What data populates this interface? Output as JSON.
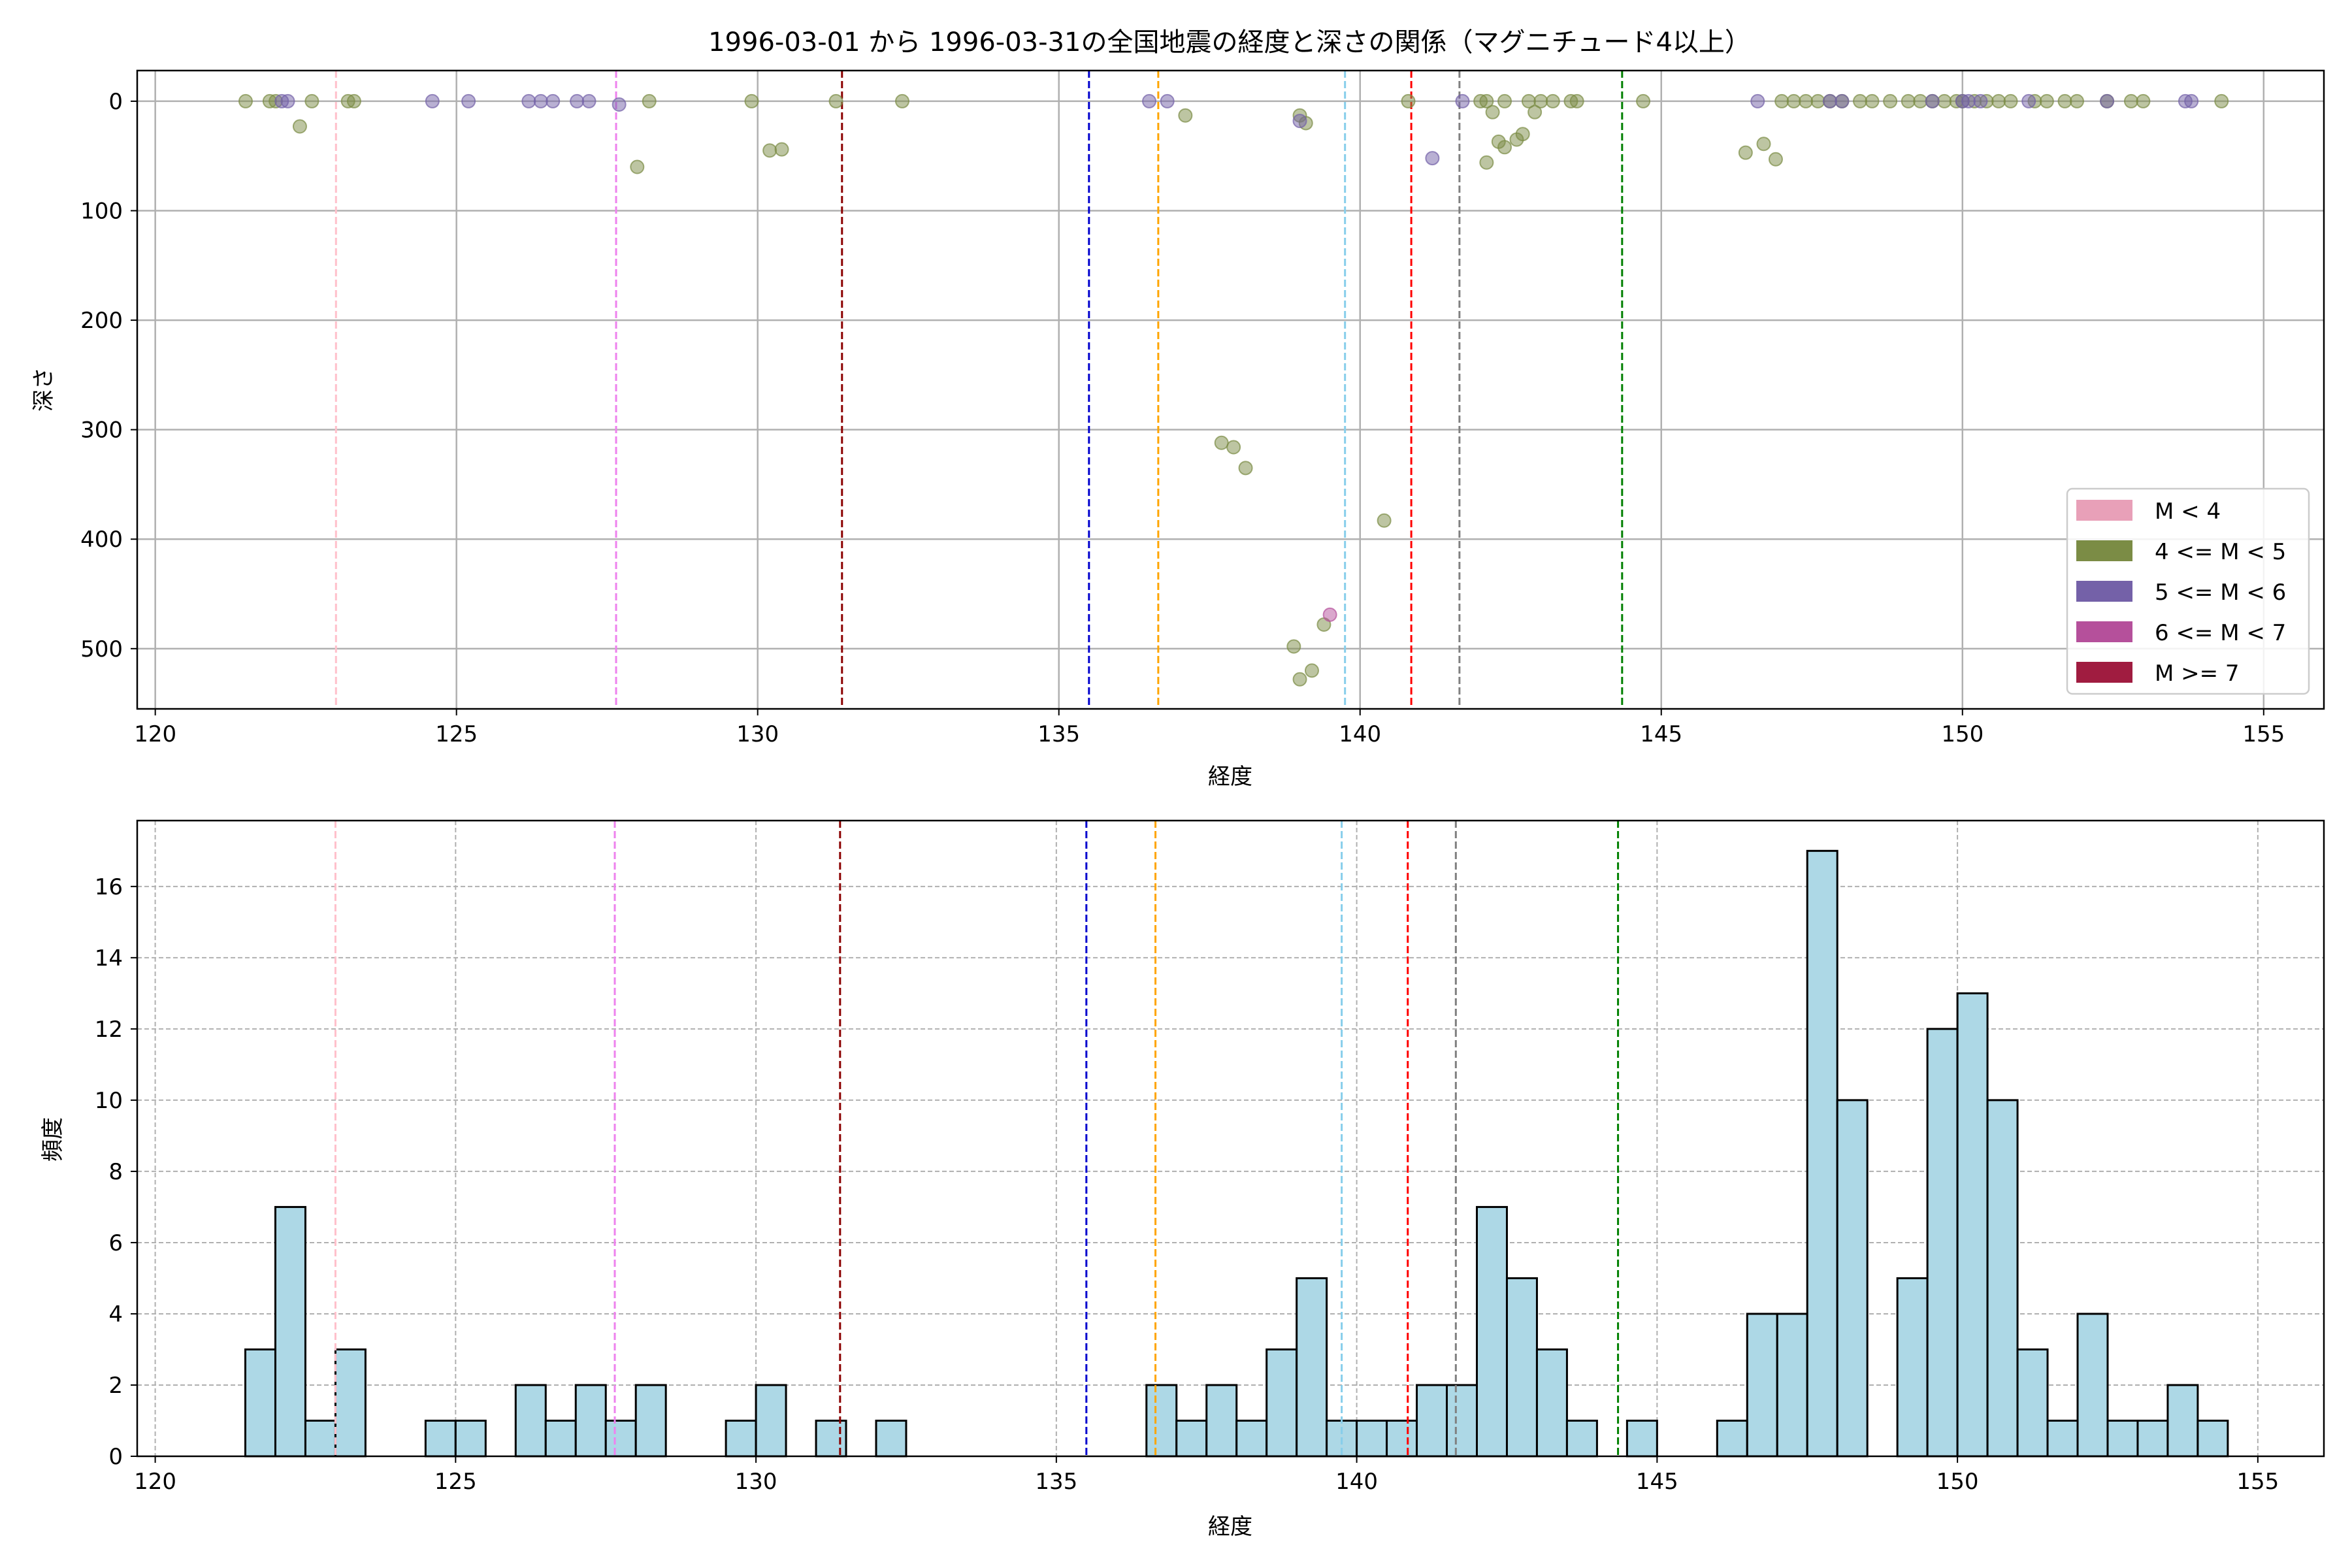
{
  "chart_data": [
    {
      "type": "scatter",
      "title": "1996-03-01 から 1996-03-31の全国地震の経度と深さの関係（マグニチュード4以上）",
      "xlabel": "経度",
      "ylabel": "深さ",
      "xlim": [
        119.7,
        156.0
      ],
      "ylim": [
        555,
        -28
      ],
      "y_inverted": true,
      "xticks": [
        120,
        125,
        130,
        135,
        140,
        145,
        150,
        155
      ],
      "yticks": [
        0,
        100,
        200,
        300,
        400,
        500
      ],
      "grid": true,
      "legend_position": "bottom-right",
      "legend": [
        {
          "label": "M < 4",
          "color": "#e8a0b8"
        },
        {
          "label": "4 <= M < 5",
          "color": "#7b8c45"
        },
        {
          "label": "5 <= M < 6",
          "color": "#7461a8"
        },
        {
          "label": "6 <= M < 7",
          "color": "#b5509b"
        },
        {
          "label": "M >= 7",
          "color": "#a01c40"
        }
      ],
      "reference_lines": [
        {
          "x": 123.0,
          "color": "#ffc0cb"
        },
        {
          "x": 127.65,
          "color": "#ee82ee"
        },
        {
          "x": 131.4,
          "color": "#8b0000"
        },
        {
          "x": 135.5,
          "color": "#0000cd"
        },
        {
          "x": 136.65,
          "color": "#ffa500"
        },
        {
          "x": 139.75,
          "color": "#87ceeb"
        },
        {
          "x": 140.85,
          "color": "#ff0000"
        },
        {
          "x": 141.65,
          "color": "#808080"
        },
        {
          "x": 144.35,
          "color": "#008000"
        }
      ],
      "series": [
        {
          "name": "4 <= M < 5",
          "color": "#7b8c45",
          "points": [
            [
              121.5,
              0
            ],
            [
              121.9,
              0
            ],
            [
              122.0,
              0
            ],
            [
              122.4,
              23
            ],
            [
              122.6,
              0
            ],
            [
              123.2,
              0
            ],
            [
              123.3,
              0
            ],
            [
              128.0,
              60
            ],
            [
              128.2,
              0
            ],
            [
              129.9,
              0
            ],
            [
              130.2,
              45
            ],
            [
              130.4,
              44
            ],
            [
              131.3,
              0
            ],
            [
              132.4,
              0
            ],
            [
              137.1,
              13
            ],
            [
              137.7,
              312
            ],
            [
              137.9,
              316
            ],
            [
              138.1,
              335
            ],
            [
              138.9,
              498
            ],
            [
              139.0,
              528
            ],
            [
              139.0,
              13
            ],
            [
              139.1,
              20
            ],
            [
              139.2,
              520
            ],
            [
              139.4,
              478
            ],
            [
              140.4,
              383
            ],
            [
              140.8,
              0
            ],
            [
              142.0,
              0
            ],
            [
              142.1,
              0
            ],
            [
              142.2,
              10
            ],
            [
              142.3,
              37
            ],
            [
              142.4,
              42
            ],
            [
              142.4,
              0
            ],
            [
              142.1,
              56
            ],
            [
              142.6,
              35
            ],
            [
              142.7,
              30
            ],
            [
              142.8,
              0
            ],
            [
              142.9,
              10
            ],
            [
              143.0,
              0
            ],
            [
              143.2,
              0
            ],
            [
              143.5,
              0
            ],
            [
              143.6,
              0
            ],
            [
              144.7,
              0
            ],
            [
              146.4,
              47
            ],
            [
              146.7,
              39
            ],
            [
              146.9,
              53
            ],
            [
              147.0,
              0
            ],
            [
              147.2,
              0
            ],
            [
              147.4,
              0
            ],
            [
              147.6,
              0
            ],
            [
              147.8,
              0
            ],
            [
              148.0,
              0
            ],
            [
              148.3,
              0
            ],
            [
              148.5,
              0
            ],
            [
              148.8,
              0
            ],
            [
              149.1,
              0
            ],
            [
              149.3,
              0
            ],
            [
              149.5,
              0
            ],
            [
              149.7,
              0
            ],
            [
              149.9,
              0
            ],
            [
              150.0,
              0
            ],
            [
              150.2,
              0
            ],
            [
              150.4,
              0
            ],
            [
              150.6,
              0
            ],
            [
              150.8,
              0
            ],
            [
              151.2,
              0
            ],
            [
              151.4,
              0
            ],
            [
              151.7,
              0
            ],
            [
              151.9,
              0
            ],
            [
              152.4,
              0
            ],
            [
              152.8,
              0
            ],
            [
              153.0,
              0
            ],
            [
              154.3,
              0
            ]
          ]
        },
        {
          "name": "5 <= M < 6",
          "color": "#7461a8",
          "points": [
            [
              122.1,
              0
            ],
            [
              122.2,
              0
            ],
            [
              124.6,
              0
            ],
            [
              125.2,
              0
            ],
            [
              126.2,
              0
            ],
            [
              126.4,
              0
            ],
            [
              126.6,
              0
            ],
            [
              127.0,
              0
            ],
            [
              127.2,
              0
            ],
            [
              127.7,
              3
            ],
            [
              136.5,
              0
            ],
            [
              136.8,
              0
            ],
            [
              139.0,
              18
            ],
            [
              141.2,
              52
            ],
            [
              141.7,
              0
            ],
            [
              146.6,
              0
            ],
            [
              147.8,
              0
            ],
            [
              148.0,
              0
            ],
            [
              149.5,
              0
            ],
            [
              150.0,
              0
            ],
            [
              150.1,
              0
            ],
            [
              150.3,
              0
            ],
            [
              151.1,
              0
            ],
            [
              152.4,
              0
            ],
            [
              153.7,
              0
            ],
            [
              153.8,
              0
            ]
          ]
        },
        {
          "name": "6 <= M < 7",
          "color": "#b5509b",
          "points": [
            [
              139.5,
              469
            ]
          ]
        }
      ]
    },
    {
      "type": "bar",
      "chart_kind": "histogram",
      "xlabel": "経度",
      "ylabel": "頻度",
      "xlim": [
        119.7,
        156.1
      ],
      "ylim": [
        0,
        17.85
      ],
      "xticks": [
        120,
        125,
        130,
        135,
        140,
        145,
        150,
        155
      ],
      "yticks": [
        0,
        2,
        4,
        6,
        8,
        10,
        12,
        14,
        16
      ],
      "grid": true,
      "bar_color": "#add8e6",
      "bin_start": 121.5,
      "bin_width": 0.5,
      "counts": [
        3,
        7,
        1,
        3,
        0,
        0,
        1,
        1,
        0,
        2,
        1,
        2,
        1,
        2,
        0,
        0,
        1,
        2,
        0,
        1,
        0,
        1,
        0,
        0,
        0,
        0,
        0,
        0,
        0,
        0,
        2,
        1,
        2,
        1,
        3,
        5,
        1,
        1,
        1,
        2,
        2,
        7,
        5,
        3,
        1,
        0,
        1,
        0,
        0,
        1,
        4,
        4,
        17,
        10,
        0,
        5,
        12,
        13,
        10,
        3,
        1,
        4,
        1,
        1,
        2,
        1
      ],
      "reference_lines": [
        {
          "x": 123.0,
          "color": "#ffc0cb"
        },
        {
          "x": 127.65,
          "color": "#ee82ee"
        },
        {
          "x": 131.4,
          "color": "#8b0000"
        },
        {
          "x": 135.5,
          "color": "#0000cd"
        },
        {
          "x": 136.65,
          "color": "#ffa500"
        },
        {
          "x": 139.75,
          "color": "#87ceeb"
        },
        {
          "x": 140.85,
          "color": "#ff0000"
        },
        {
          "x": 141.65,
          "color": "#808080"
        },
        {
          "x": 144.35,
          "color": "#008000"
        }
      ]
    }
  ]
}
